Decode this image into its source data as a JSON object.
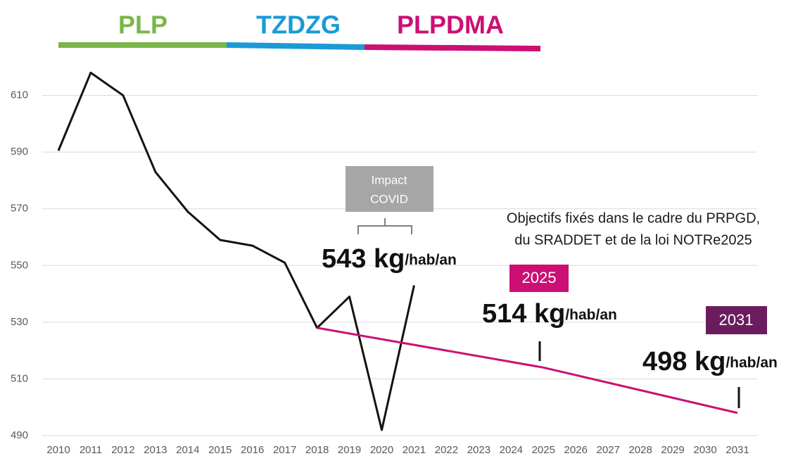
{
  "chart_data": {
    "type": "line",
    "periods": [
      {
        "label": "PLP",
        "color": "#7ab648"
      },
      {
        "label": "TZDZG",
        "color": "#1a9ad6"
      },
      {
        "label": "PLPDMA",
        "color": "#cc0f74"
      }
    ],
    "xlim": [
      2010,
      2031
    ],
    "xticks": [
      2010,
      2011,
      2012,
      2013,
      2014,
      2015,
      2016,
      2017,
      2018,
      2019,
      2020,
      2021,
      2022,
      2023,
      2024,
      2025,
      2026,
      2027,
      2028,
      2029,
      2030,
      2031
    ],
    "ylim": [
      490,
      630
    ],
    "yticks": [
      490,
      510,
      530,
      550,
      570,
      590,
      610
    ],
    "grid": true,
    "series": [
      {
        "color": "#1a1010",
        "x": [
          2010,
          2011,
          2012,
          2013,
          2014,
          2015,
          2016,
          2017,
          2018,
          2019,
          2020,
          2021
        ],
        "values": [
          590.5,
          618,
          610,
          583,
          569,
          559,
          557,
          551,
          528,
          539,
          492,
          543
        ]
      },
      {
        "color": "#cc0f74",
        "x": [
          2018,
          2025,
          2031
        ],
        "values": [
          528,
          514,
          498
        ]
      }
    ],
    "covid_note": [
      "Impact",
      "COVID"
    ],
    "objectives_note": [
      "Objectifs fixés dans le cadre du PRPGD,",
      "du SRADDET et de la loi NOTRe2025"
    ],
    "current": {
      "amount": "543 kg",
      "unit": "/hab/an"
    },
    "targets": [
      {
        "year_label": "2025",
        "amount": "514 kg",
        "unit": "/hab/an",
        "color": "#cc0f74"
      },
      {
        "year_label": "2031",
        "amount": "498 kg",
        "unit": "/hab/an",
        "color": "#6b1c5e"
      }
    ]
  }
}
